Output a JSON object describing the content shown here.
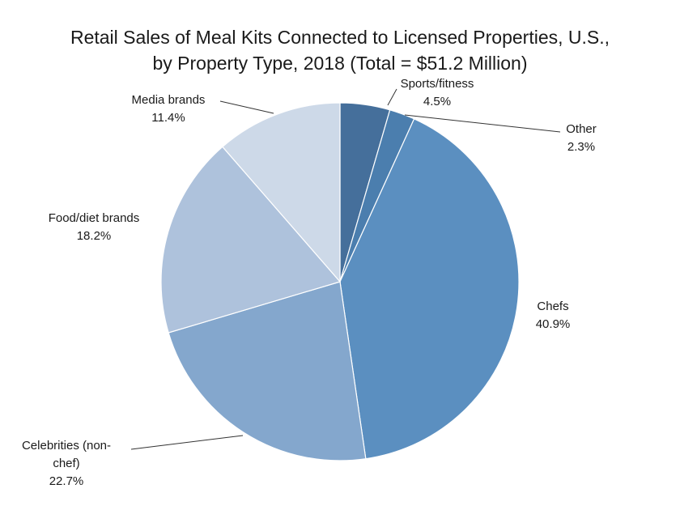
{
  "chart_data": {
    "type": "pie",
    "title": "Retail Sales of Meal Kits Connected to Licensed Properties, U.S., by Property Type, 2018 (Total = $51.2 Million)",
    "title_lines": [
      "Retail Sales of Meal Kits Connected to Licensed Properties, U.S.,",
      "by Property Type, 2018 (Total = $51.2 Million)"
    ],
    "legend": "none",
    "slices": [
      {
        "label": "Sports/fitness",
        "label_lines": [
          "Sports/fitness"
        ],
        "value": 4.5,
        "value_label": "4.5%",
        "color": "#456f9b"
      },
      {
        "label": "Other",
        "label_lines": [
          "Other"
        ],
        "value": 2.3,
        "value_label": "2.3%",
        "color": "#4b7eae"
      },
      {
        "label": "Chefs",
        "label_lines": [
          "Chefs"
        ],
        "value": 40.9,
        "value_label": "40.9%",
        "color": "#5b8fc0"
      },
      {
        "label": "Celebrities (non-chef)",
        "label_lines": [
          "Celebrities (non-",
          "chef)"
        ],
        "value": 22.7,
        "value_label": "22.7%",
        "color": "#84a7cd"
      },
      {
        "label": "Food/diet brands",
        "label_lines": [
          "Food/diet brands"
        ],
        "value": 18.2,
        "value_label": "18.2%",
        "color": "#aec2dc"
      },
      {
        "label": "Media brands",
        "label_lines": [
          "Media brands"
        ],
        "value": 11.4,
        "value_label": "11.4%",
        "color": "#cdd9e8"
      }
    ]
  }
}
